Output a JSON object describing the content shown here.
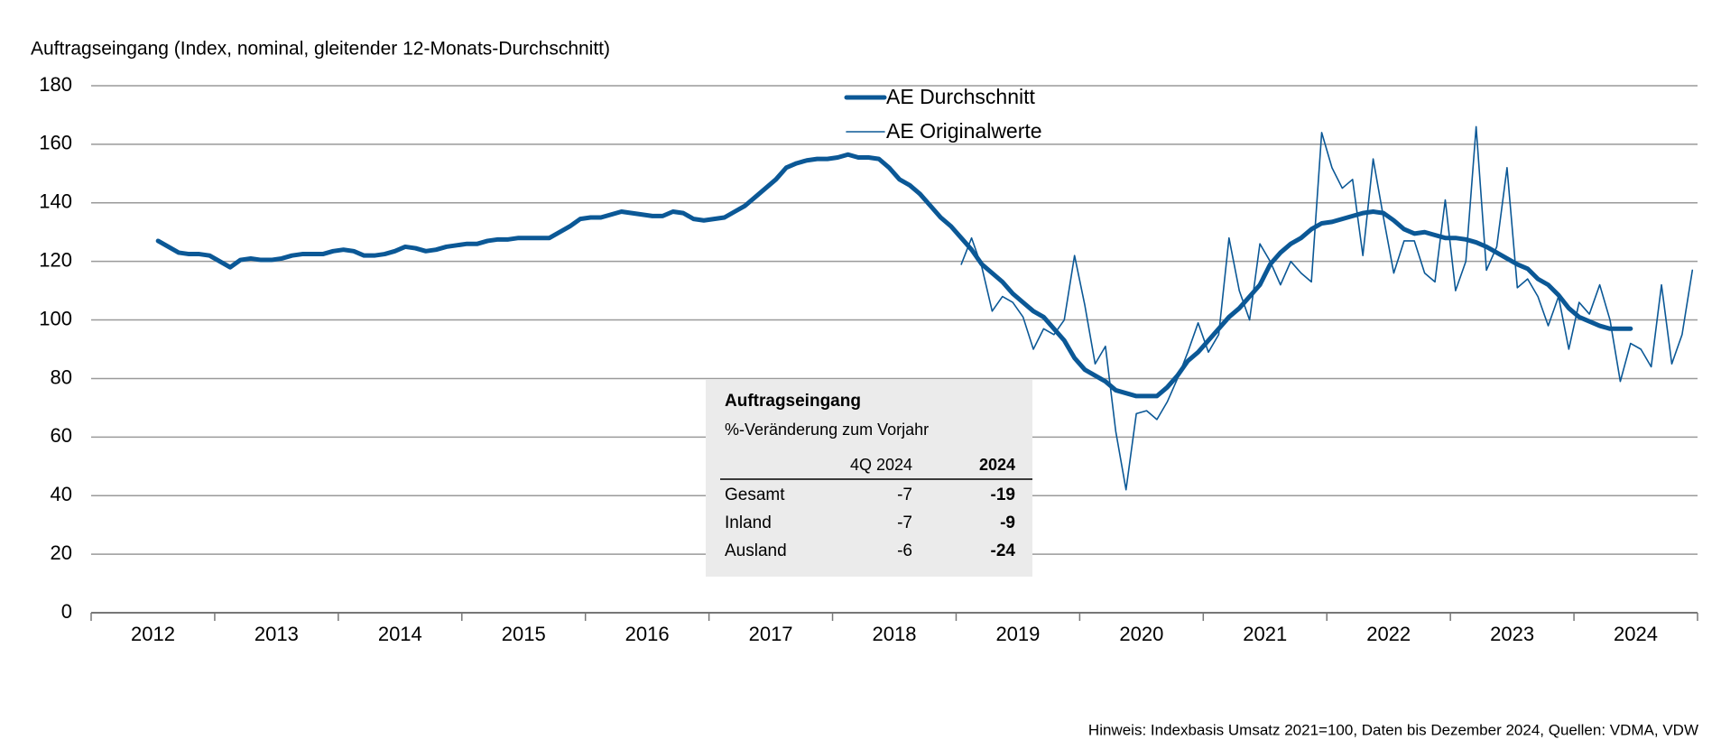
{
  "chart_data": {
    "type": "line",
    "title": "Auftragseingang (Index, nominal, gleitender 12-Monats-Durchschnitt)",
    "footnote": "Hinweis: Indexbasis Umsatz 2021=100, Daten bis Dezember 2024, Quellen: VDMA, VDW",
    "categories": [
      null,
      null,
      null,
      null,
      null,
      null,
      "2012",
      null,
      null,
      null,
      null,
      null,
      null,
      null,
      null,
      null,
      null,
      null,
      "2013",
      null,
      null,
      null,
      null,
      null,
      null,
      null,
      null,
      null,
      null,
      null,
      "2014",
      null,
      null,
      null,
      null,
      null,
      null,
      null,
      null,
      null,
      null,
      null,
      "2015",
      null,
      null,
      null,
      null,
      null,
      null,
      null,
      null,
      null,
      null,
      null,
      "2016",
      null,
      null,
      null,
      null,
      null,
      null,
      null,
      null,
      null,
      null,
      null,
      "2017",
      null,
      null,
      null,
      null,
      null,
      null,
      null,
      null,
      null,
      null,
      null,
      "2018",
      null,
      null,
      null,
      null,
      null,
      null,
      null,
      null,
      null,
      null,
      null,
      "2019",
      null,
      null,
      null,
      null,
      null,
      null,
      null,
      null,
      null,
      null,
      null,
      "2020",
      null,
      null,
      null,
      null,
      null,
      null,
      null,
      null,
      null,
      null,
      null,
      "2021",
      null,
      null,
      null,
      null,
      null,
      null,
      null,
      null,
      null,
      null,
      null,
      "2022",
      null,
      null,
      null,
      null,
      null,
      null,
      null,
      null,
      null,
      null,
      null,
      "2023",
      null,
      null,
      null,
      null,
      null,
      null,
      null,
      null,
      null,
      null,
      null,
      "2024",
      null,
      null,
      null,
      null,
      null
    ],
    "ylim": [
      0,
      180
    ],
    "yticks": [
      0,
      20,
      40,
      60,
      80,
      100,
      120,
      140,
      160,
      180
    ],
    "grid": true,
    "legend": "top",
    "series": [
      {
        "name": "AE Durchschnitt",
        "color": "#0b5896",
        "width": 5,
        "values": [
          null,
          null,
          null,
          null,
          null,
          null,
          127,
          125,
          123,
          122.5,
          122.5,
          122,
          120,
          118,
          120.5,
          121,
          120.5,
          120.5,
          121,
          122,
          122.5,
          122.5,
          122.5,
          123.5,
          124,
          123.5,
          122,
          122,
          122.5,
          123.5,
          125,
          124.5,
          123.5,
          124,
          125,
          125.5,
          126,
          126,
          127,
          127.5,
          127.5,
          128,
          128,
          128,
          128,
          130,
          132,
          134.5,
          135,
          135,
          136,
          137,
          136.5,
          136,
          135.5,
          135.5,
          137,
          136.5,
          134.5,
          134,
          134.5,
          135,
          137,
          139,
          142,
          145,
          148,
          152,
          153.5,
          154.5,
          155,
          155,
          155.5,
          156.5,
          155.5,
          155.5,
          155,
          152,
          148,
          146,
          143,
          139,
          135,
          132,
          128,
          124,
          119,
          116,
          113,
          109,
          106,
          103,
          101,
          97,
          93,
          87,
          83,
          81,
          79,
          76,
          75,
          74,
          74,
          74,
          77,
          81,
          86,
          89,
          93,
          97,
          101,
          104,
          108,
          112,
          119,
          123,
          126,
          128,
          131,
          133,
          133.5,
          134.5,
          135.5,
          136.5,
          137,
          136.5,
          134,
          131,
          129.5,
          130,
          129,
          128,
          128,
          127.5,
          126.5,
          125,
          123,
          121,
          119,
          117.5,
          114,
          112,
          108.5,
          104,
          101,
          99.5,
          98,
          97,
          97,
          97,
          null,
          null,
          null,
          null,
          null,
          null
        ]
      },
      {
        "name": "AE Originalwerte",
        "color": "#0b5896",
        "width": 1.6,
        "values": [
          null,
          null,
          null,
          null,
          null,
          null,
          null,
          null,
          null,
          null,
          null,
          null,
          null,
          null,
          null,
          null,
          null,
          null,
          null,
          null,
          null,
          null,
          null,
          null,
          null,
          null,
          null,
          null,
          null,
          null,
          null,
          null,
          null,
          null,
          null,
          null,
          null,
          null,
          null,
          null,
          null,
          null,
          null,
          null,
          null,
          null,
          null,
          null,
          null,
          null,
          null,
          null,
          null,
          null,
          null,
          null,
          null,
          null,
          null,
          null,
          null,
          null,
          null,
          null,
          null,
          null,
          null,
          null,
          null,
          null,
          null,
          null,
          null,
          null,
          null,
          null,
          null,
          null,
          null,
          null,
          null,
          null,
          null,
          null,
          119,
          128,
          118,
          103,
          108,
          106,
          101,
          90,
          97,
          95,
          100,
          122,
          105,
          85,
          91,
          62,
          42,
          68,
          69,
          66,
          72,
          80,
          89,
          99,
          89,
          95,
          128,
          110,
          100,
          126,
          120,
          112,
          120,
          116,
          113,
          164,
          152,
          145,
          148,
          122,
          155,
          135,
          116,
          127,
          127,
          116,
          113,
          141,
          110,
          120,
          166,
          117,
          125,
          152,
          111,
          114,
          108,
          98,
          108,
          90,
          106,
          102,
          112,
          100,
          79,
          92,
          90,
          84,
          112,
          85,
          95,
          117
        ]
      }
    ],
    "info_box": {
      "title": "Auftragseingang",
      "subtitle": "%-Veränderung zum Vorjahr",
      "columns": [
        "4Q 2024",
        "2024"
      ],
      "rows": [
        {
          "label": "Gesamt",
          "values": [
            -7,
            -19
          ]
        },
        {
          "label": "Inland",
          "values": [
            -7,
            -9
          ]
        },
        {
          "label": "Ausland",
          "values": [
            -6,
            -24
          ]
        }
      ]
    }
  }
}
